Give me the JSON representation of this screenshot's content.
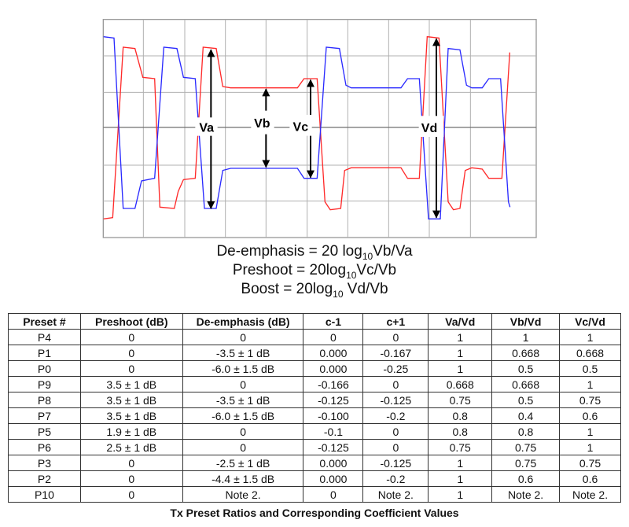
{
  "diagram": {
    "labels": {
      "va": "Va",
      "vb": "Vb",
      "vc": "Vc",
      "vd": "Vd"
    },
    "colors": {
      "trace_positive": "#ff2a2a",
      "trace_negative": "#2a2aff",
      "grid": "#b0b0b0",
      "axis": "#707070"
    }
  },
  "formulas": [
    {
      "prefix": "De-emphasis = 20 log",
      "sub": "10",
      "suffix": "Vb/Va"
    },
    {
      "prefix": "Preshoot = 20log",
      "sub": "10",
      "suffix": "Vc/Vb"
    },
    {
      "prefix": "Boost = 20log",
      "sub": "10",
      "suffix": " Vd/Vb"
    }
  ],
  "table": {
    "headers": [
      "Preset #",
      "Preshoot (dB)",
      "De-emphasis (dB)",
      "c-1",
      "c+1",
      "Va/Vd",
      "Vb/Vd",
      "Vc/Vd"
    ],
    "rows": [
      [
        "P4",
        "0",
        "0",
        "0",
        "0",
        "1",
        "1",
        "1"
      ],
      [
        "P1",
        "0",
        "-3.5 ± 1 dB",
        "0.000",
        "-0.167",
        "1",
        "0.668",
        "0.668"
      ],
      [
        "P0",
        "0",
        "-6.0 ± 1.5 dB",
        "0.000",
        "-0.25",
        "1",
        "0.5",
        "0.5"
      ],
      [
        "P9",
        "3.5 ± 1 dB",
        "0",
        "-0.166",
        "0",
        "0.668",
        "0.668",
        "1"
      ],
      [
        "P8",
        "3.5 ± 1 dB",
        "-3.5 ± 1 dB",
        "-0.125",
        "-0.125",
        "0.75",
        "0.5",
        "0.75"
      ],
      [
        "P7",
        "3.5 ± 1 dB",
        "-6.0 ± 1.5 dB",
        "-0.100",
        "-0.2",
        "0.8",
        "0.4",
        "0.6"
      ],
      [
        "P5",
        "1.9 ± 1 dB",
        "0",
        "-0.1",
        "0",
        "0.8",
        "0.8",
        "1"
      ],
      [
        "P6",
        "2.5 ± 1 dB",
        "0",
        "-0.125",
        "0",
        "0.75",
        "0.75",
        "1"
      ],
      [
        "P3",
        "0",
        "-2.5 ± 1 dB",
        "0.000",
        "-0.125",
        "1",
        "0.75",
        "0.75"
      ],
      [
        "P2",
        "0",
        "-4.4 ± 1.5 dB",
        "0.000",
        "-0.2",
        "1",
        "0.6",
        "0.6"
      ],
      [
        "P10",
        "0",
        "Note 2.",
        "0",
        "Note 2.",
        "1",
        "Note 2.",
        "Note 2."
      ]
    ]
  },
  "caption": "Tx Preset Ratios and Corresponding Coefficient Values"
}
